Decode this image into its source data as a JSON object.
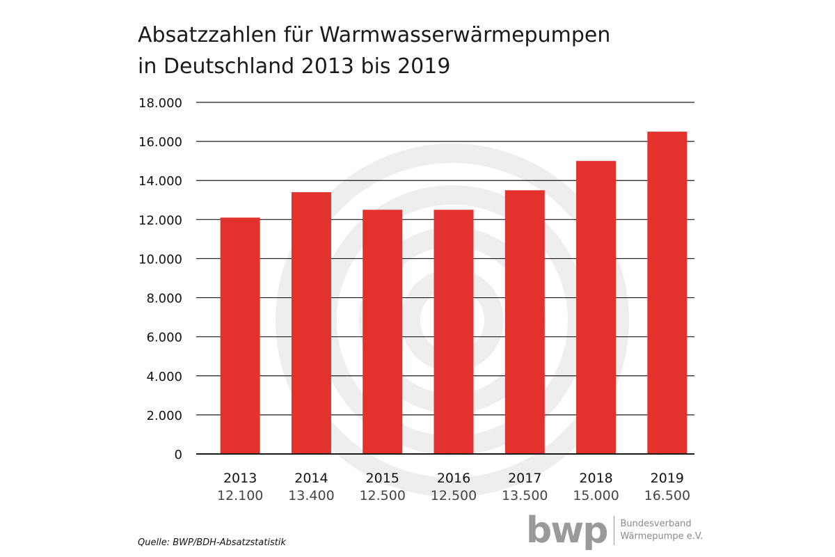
{
  "chart_data": {
    "type": "bar",
    "title_lines": [
      "Absatzzahlen für Warmwasserwärmepumpen",
      "in Deutschland 2013 bis 2019"
    ],
    "categories": [
      "2013",
      "2014",
      "2015",
      "2016",
      "2017",
      "2018",
      "2019"
    ],
    "values": [
      12100,
      13400,
      12500,
      12500,
      13500,
      15000,
      16500
    ],
    "value_labels": [
      "12.100",
      "13.400",
      "12.500",
      "12.500",
      "13.500",
      "15.000",
      "16.500"
    ],
    "y_ticks": [
      0,
      2000,
      4000,
      6000,
      8000,
      10000,
      12000,
      14000,
      16000,
      18000
    ],
    "y_tick_labels": [
      "0",
      "2.000",
      "4.000",
      "6.000",
      "8.000",
      "10.000",
      "12.000",
      "14.000",
      "16.000",
      "18.000"
    ],
    "ylim": [
      0,
      18000
    ],
    "xlabel": "",
    "ylabel": "",
    "grid": true,
    "bar_color": "#e3312d"
  },
  "source": "Quelle: BWP/BDH-Absatzstatistik",
  "logo": {
    "mark": "bwp",
    "line1": "Bundesverband",
    "line2": "Wärmepumpe e.V."
  },
  "colors": {
    "bar": "#e3312d",
    "grid": "#1a1a1a",
    "watermark": "#eeeeee",
    "logo": "#9a9a9a"
  }
}
